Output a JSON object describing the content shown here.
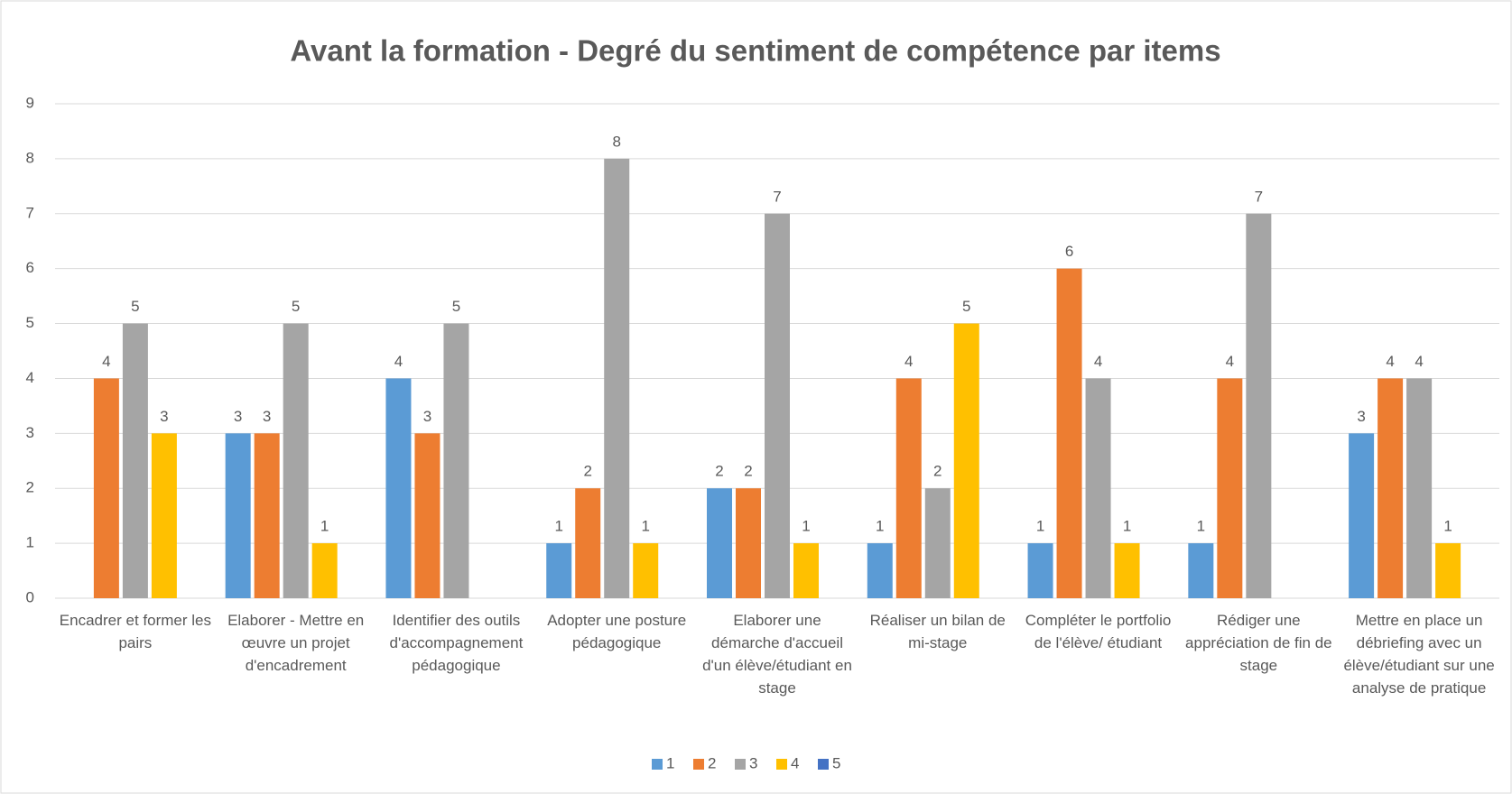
{
  "chart_data": {
    "type": "bar",
    "title": "Avant la formation - Degré du sentiment de compétence par items",
    "categories": [
      "Encadrer et former les pairs",
      "Elaborer - Mettre en œuvre un projet d'encadrement",
      "Identifier des outils d'accompagnement pédagogique",
      "Adopter une posture pédagogique",
      "Elaborer une démarche d'accueil d'un élève/étudiant en stage",
      "Réaliser un bilan de mi-stage",
      "Compléter le portfolio de l'élève/ étudiant",
      "Rédiger une appréciation de fin de stage",
      "Mettre en place un débriefing avec un élève/étudiant sur une analyse de pratique"
    ],
    "series": [
      {
        "name": "1",
        "color": "#5b9bd5",
        "values": [
          null,
          3,
          4,
          1,
          2,
          1,
          1,
          1,
          3
        ]
      },
      {
        "name": "2",
        "color": "#ed7d31",
        "values": [
          4,
          3,
          3,
          2,
          2,
          4,
          6,
          4,
          4
        ]
      },
      {
        "name": "3",
        "color": "#a5a5a5",
        "values": [
          5,
          5,
          5,
          8,
          7,
          2,
          4,
          7,
          4
        ]
      },
      {
        "name": "4",
        "color": "#ffc000",
        "values": [
          3,
          1,
          null,
          1,
          1,
          5,
          1,
          null,
          1
        ]
      },
      {
        "name": "5",
        "color": "#4472c4",
        "values": [
          null,
          null,
          null,
          null,
          null,
          null,
          null,
          null,
          null
        ]
      }
    ],
    "ylim": [
      0,
      9
    ],
    "yticks": [
      0,
      1,
      2,
      3,
      4,
      5,
      6,
      7,
      8,
      9
    ],
    "grid": true,
    "legend": "bottom"
  }
}
